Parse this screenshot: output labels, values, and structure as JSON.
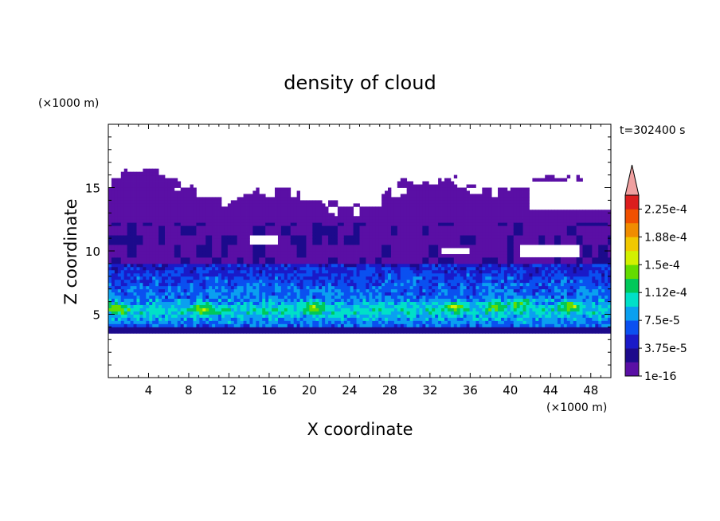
{
  "chart_data": {
    "type": "heatmap",
    "title": "density of cloud",
    "xlabel": "X coordinate",
    "ylabel": "Z coordinate",
    "x_unit": "(×1000 m)",
    "y_unit": "(×1000 m)",
    "time_label": "t=302400 s",
    "xlim": [
      0,
      50
    ],
    "ylim": [
      0,
      20
    ],
    "xticks": [
      4,
      8,
      12,
      16,
      20,
      24,
      28,
      32,
      36,
      40,
      44,
      48
    ],
    "yticks": [
      5,
      10,
      15
    ],
    "colorbar": {
      "tick_labels": [
        "1e-16",
        "3.75e-5",
        "7.5e-5",
        "1.12e-4",
        "1.5e-4",
        "1.88e-4",
        "2.25e-4"
      ],
      "colors": [
        "#5a0fa5",
        "#1c0a8c",
        "#1a1ac8",
        "#0a50f0",
        "#0aa0f0",
        "#00e0c8",
        "#00c85a",
        "#64dc00",
        "#d2f000",
        "#f0c800",
        "#f08c00",
        "#f05000",
        "#dc1e1e"
      ],
      "extend_color": "#f0a0a0"
    },
    "field": {
      "base_extent_km": [
        3.6,
        12.2
      ],
      "enhanced_bands": [
        {
          "z_km": [
            3.8,
            6.4
          ],
          "level": "high",
          "note": "main cloud layer near 5 km"
        },
        {
          "z_km": [
            6.4,
            9.0
          ],
          "level": "medium"
        },
        {
          "z_km": [
            9.0,
            17.0
          ],
          "level": "low"
        }
      ],
      "hotspots_km": [
        [
          1.0,
          5.5
        ],
        [
          9.5,
          5.4
        ],
        [
          20.5,
          5.6
        ],
        [
          34.5,
          5.6
        ],
        [
          38.5,
          5.7
        ],
        [
          41.0,
          5.9
        ],
        [
          46.0,
          5.7
        ]
      ]
    }
  }
}
